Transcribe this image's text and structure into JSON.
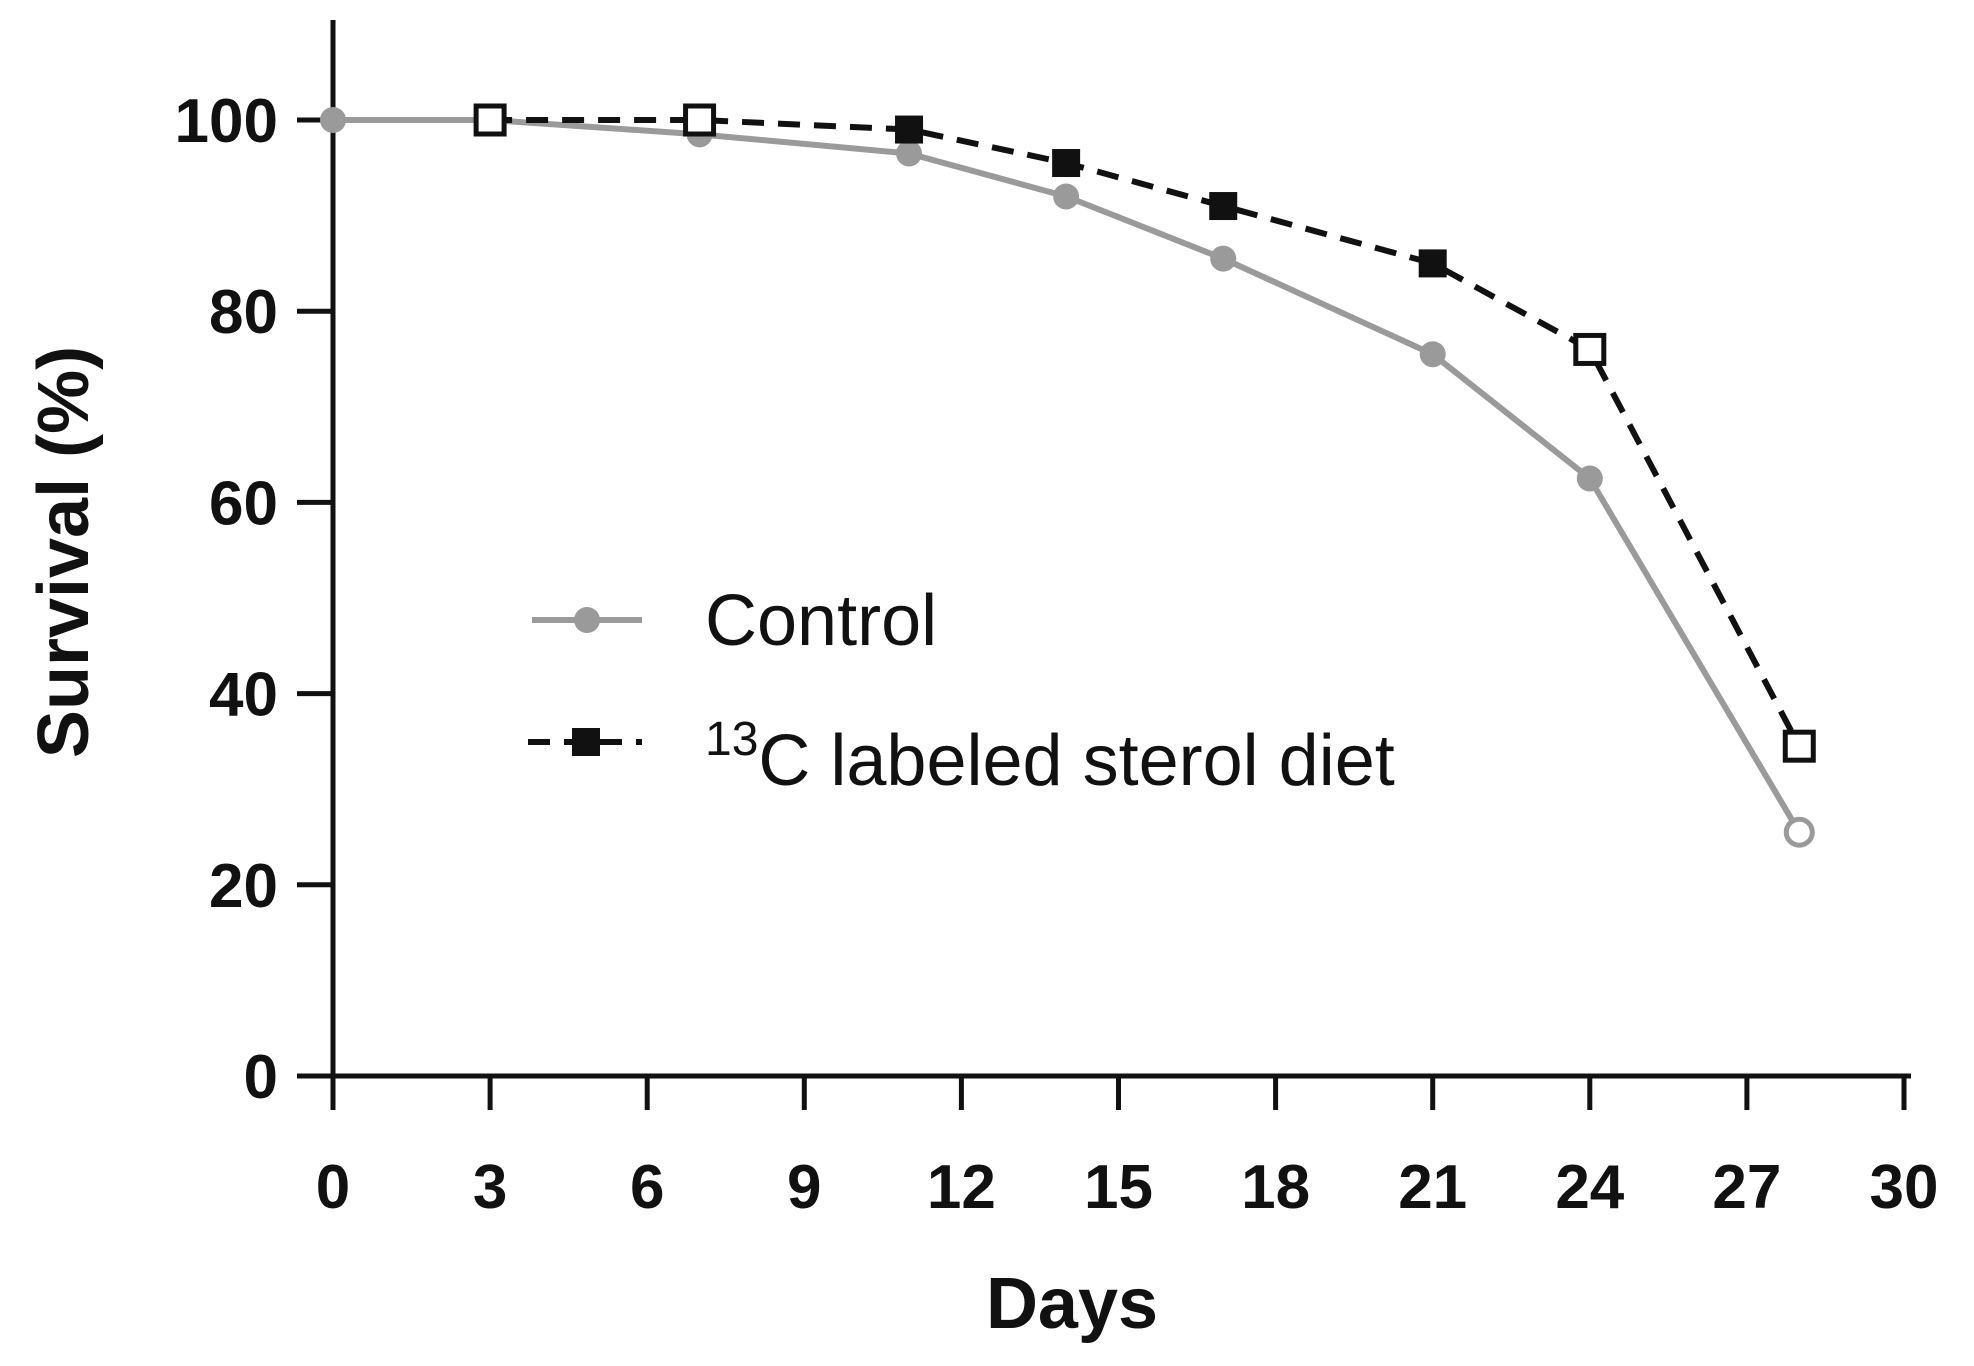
{
  "chart_data": {
    "type": "line",
    "title": "",
    "xlabel": "Days",
    "ylabel": "Survival (%)",
    "xlim": [
      0,
      30
    ],
    "ylim": [
      0,
      110
    ],
    "xticks": [
      0,
      3,
      6,
      9,
      12,
      15,
      18,
      21,
      24,
      27,
      30
    ],
    "yticks": [
      0,
      20,
      40,
      60,
      80,
      100
    ],
    "grid": false,
    "legend_position": "center-left",
    "series": [
      {
        "name": "Control",
        "color": "#9a9a9a",
        "line": "solid",
        "marker": "circle",
        "x": [
          0,
          3,
          7,
          11,
          14,
          17,
          21,
          24,
          28
        ],
        "y": [
          100,
          100,
          98.5,
          96.5,
          92,
          85.5,
          75.5,
          62.5,
          25.5
        ]
      },
      {
        "name": "13C labeled sterol diet",
        "legend_sup": "13",
        "legend_rest": "C labeled sterol diet",
        "color": "#111111",
        "line": "dashed",
        "marker": "square",
        "x": [
          3,
          7,
          11,
          14,
          17,
          21,
          24,
          28
        ],
        "y": [
          100,
          100,
          99,
          95.5,
          91,
          85,
          76,
          34.5
        ]
      }
    ]
  }
}
